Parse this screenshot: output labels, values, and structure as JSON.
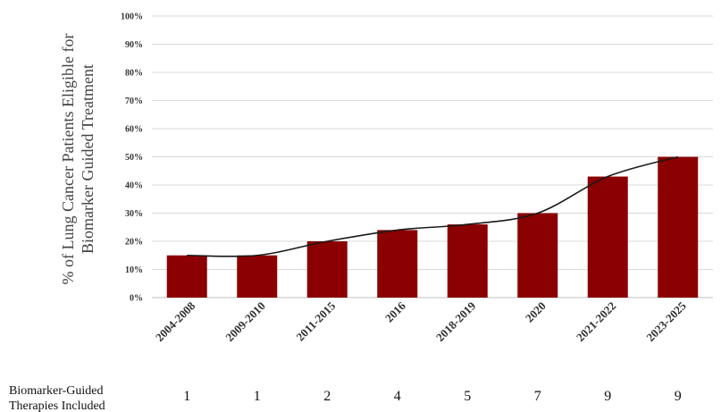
{
  "chart_data": {
    "type": "bar",
    "categories": [
      "2004-2008",
      "2009-2010",
      "2011-2015",
      "2016",
      "2018-2019",
      "2020",
      "2021-2022",
      "2023-2025"
    ],
    "values": [
      15,
      15,
      20,
      24,
      26,
      30,
      43,
      50
    ],
    "ylim": [
      0,
      100
    ],
    "yticks": [
      "0%",
      "10%",
      "20%",
      "30%",
      "40%",
      "50%",
      "60%",
      "70%",
      "80%",
      "90%",
      "100%"
    ],
    "ylabel_line1": "% of Lung Cancer Patients Eligible for",
    "ylabel_line2": "Biomarker Guided Treatment",
    "trendline": true,
    "grid": true,
    "bar_color": "#8b0000",
    "row_title_line1": "Biomarker-Guided",
    "row_title_line2": "Therapies Included",
    "row_values": [
      "1",
      "1",
      "2",
      "4",
      "5",
      "7",
      "9",
      "9"
    ]
  }
}
